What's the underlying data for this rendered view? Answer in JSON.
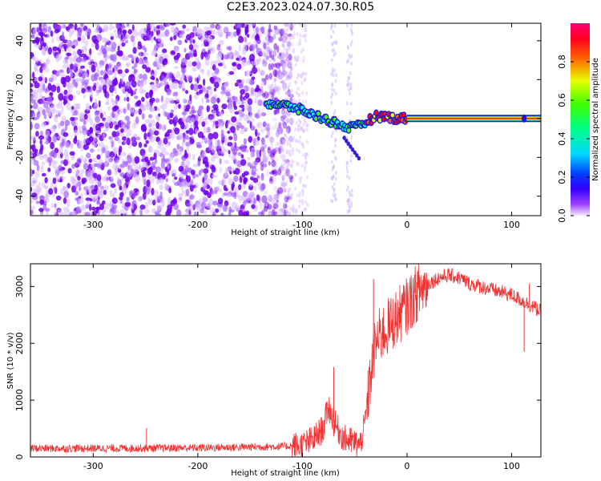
{
  "title": "C2E3.2023.024.07.30.R05",
  "chart_data": [
    {
      "type": "heatmap",
      "xlabel": "Height of straight line (km)",
      "ylabel": "Frequency (Hz)",
      "xlim": [
        -360,
        128
      ],
      "ylim": [
        -50,
        49
      ],
      "xticks": [
        -300,
        -200,
        -100,
        0,
        100
      ],
      "yticks": [
        -40,
        -20,
        0,
        20,
        40
      ],
      "colorbar": {
        "label": "Normalized spectral amplitude",
        "range": [
          0,
          1
        ],
        "ticks": [
          "0.0",
          "0.2",
          "0.4",
          "0.6",
          "0.8"
        ],
        "colors": [
          "#f4ecff",
          "#7b00ff",
          "#0000ff",
          "#00ffff",
          "#00ff00",
          "#ffff00",
          "#ff0000",
          "#ff0066"
        ]
      },
      "ridge": {
        "x": [
          -135,
          -110,
          -100,
          -90,
          -80,
          -70,
          -60,
          -50,
          -40,
          -30,
          -20,
          -10,
          0
        ],
        "y": [
          8,
          6,
          4,
          2,
          0,
          -2,
          -4,
          -5,
          -2,
          1,
          1,
          0,
          0
        ]
      },
      "line_y": 0,
      "line_x": [
        0,
        128
      ]
    },
    {
      "type": "line",
      "xlabel": "Height of straight line (km)",
      "ylabel": "SNR (10 * v/v)",
      "xlim": [
        -360,
        128
      ],
      "ylim": [
        0,
        3400
      ],
      "xticks": [
        -300,
        -200,
        -100,
        0,
        100
      ],
      "yticks": [
        0,
        1000,
        2000,
        3000
      ],
      "color": "#ee3333",
      "series": [
        {
          "x": [
            -360,
            -300,
            -250,
            -200,
            -150,
            -120,
            -100,
            -90,
            -80,
            -75,
            -70,
            -60,
            -50,
            -45,
            -40,
            -35,
            -30,
            -25,
            -20,
            -15,
            -10,
            -5,
            0,
            10,
            20,
            30,
            40,
            50,
            60,
            70,
            80,
            90,
            100,
            110,
            120,
            128
          ],
          "values": [
            150,
            150,
            155,
            160,
            175,
            185,
            200,
            300,
            500,
            900,
            600,
            320,
            250,
            200,
            600,
            1400,
            2000,
            2150,
            2250,
            2350,
            2450,
            2550,
            2650,
            2900,
            3050,
            3150,
            3200,
            3150,
            3050,
            3000,
            2950,
            2900,
            2850,
            2750,
            2650,
            2550
          ]
        }
      ],
      "spikes": [
        {
          "x": -249,
          "y": 510
        },
        {
          "x": -32,
          "y": 3130
        },
        {
          "x": -70,
          "y": 1580
        },
        {
          "x": 112,
          "y": 1850
        },
        {
          "x": 117,
          "y": 3050
        }
      ]
    }
  ]
}
